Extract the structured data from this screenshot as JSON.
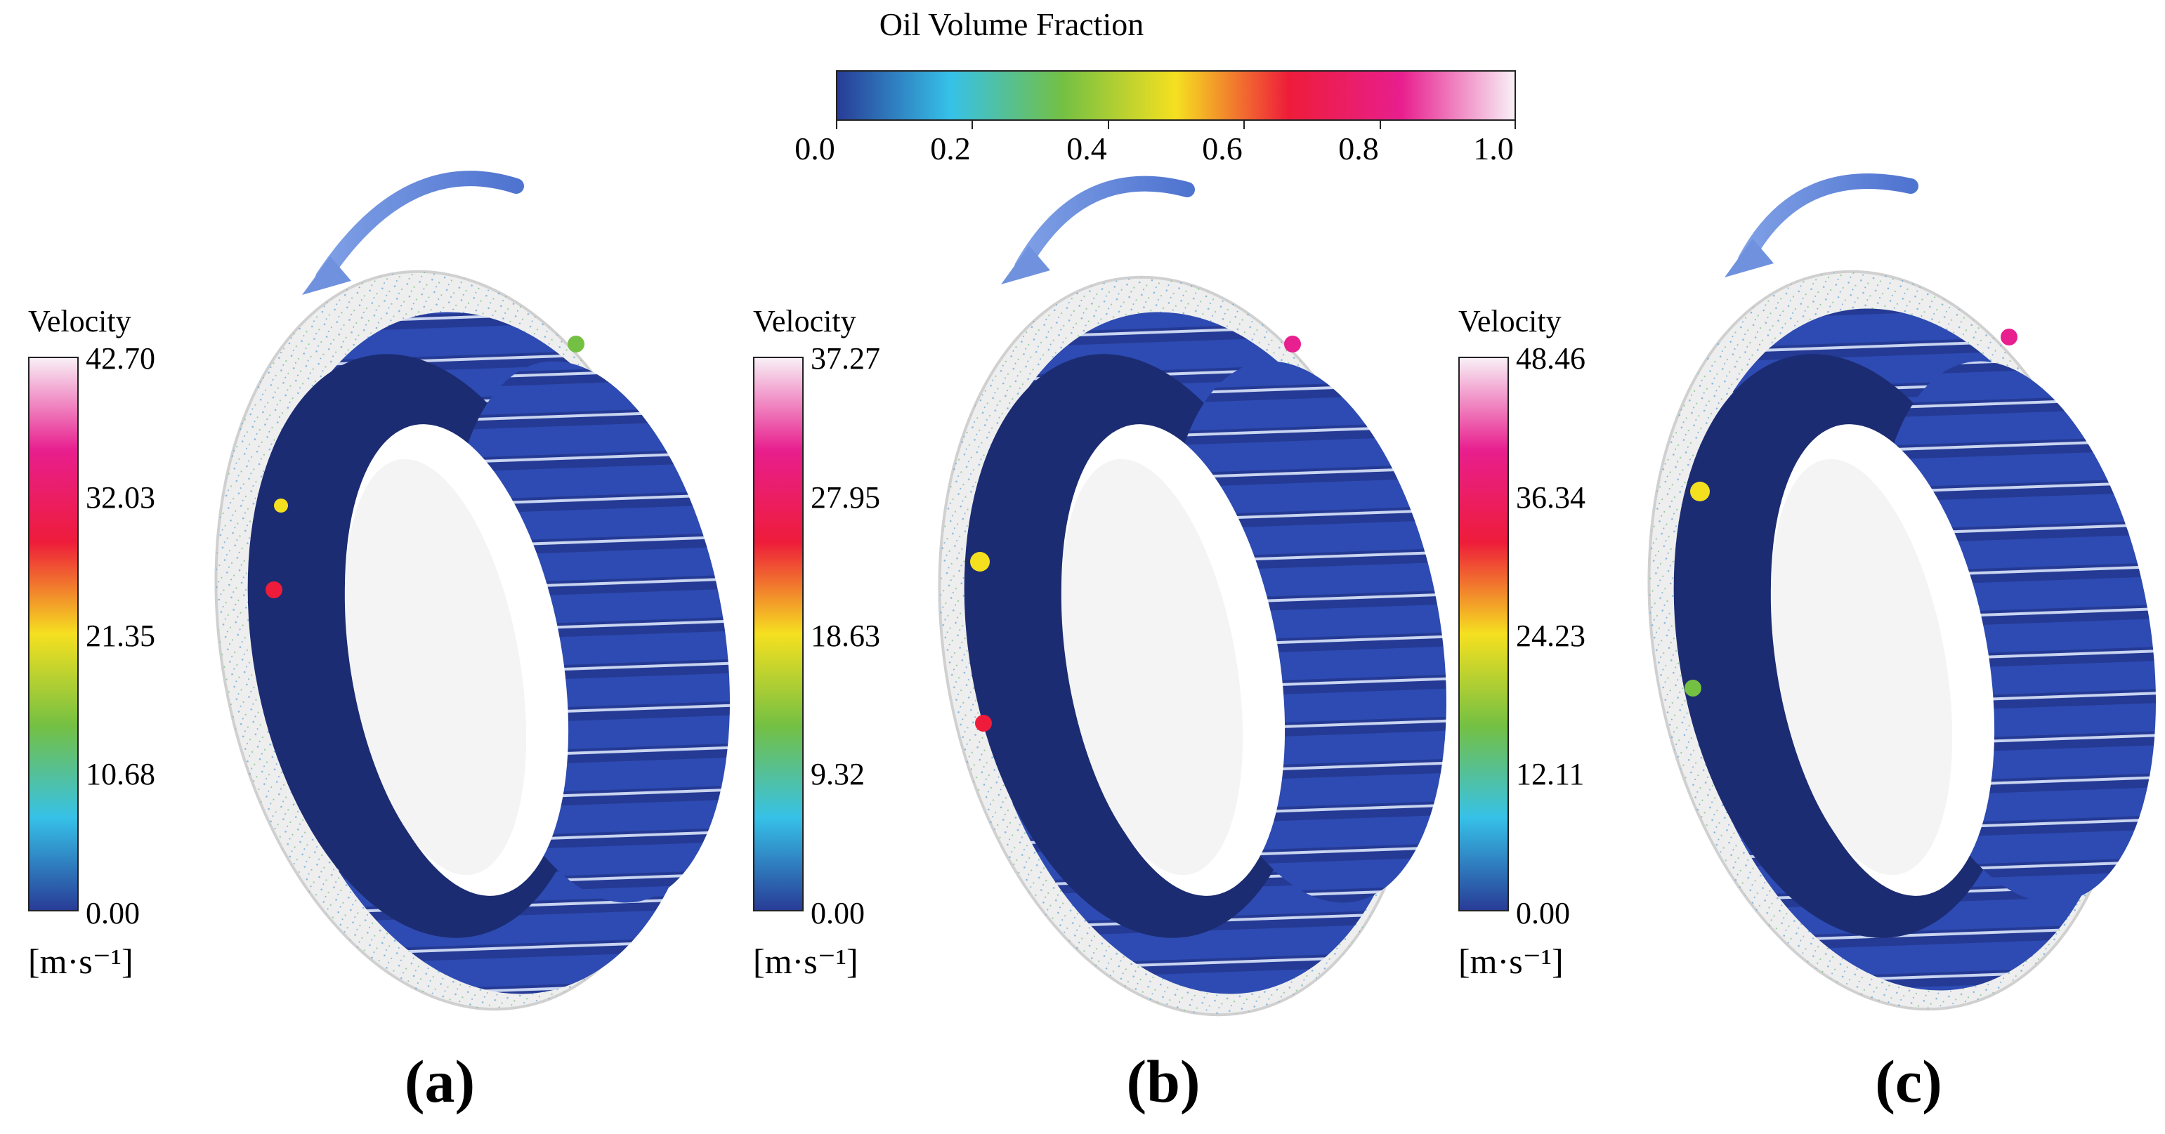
{
  "oil_legend": {
    "title": "Oil Volume Fraction",
    "ticks": [
      "0.0",
      "0.2",
      "0.4",
      "0.6",
      "0.8",
      "1.0"
    ],
    "colors": [
      "#283c96",
      "#36c1e8",
      "#74c043",
      "#f5e020",
      "#ee1c3a",
      "#e81f8e",
      "#f8f0f6"
    ]
  },
  "panels": [
    {
      "label": "(a)",
      "velocity_title": "Velocity",
      "ticks": [
        "42.70",
        "32.03",
        "21.35",
        "10.68",
        "0.00"
      ],
      "unit": "[m·s⁻¹]"
    },
    {
      "label": "(b)",
      "velocity_title": "Velocity",
      "ticks": [
        "37.27",
        "27.95",
        "18.63",
        "9.32",
        "0.00"
      ],
      "unit": "[m·s⁻¹]"
    },
    {
      "label": "(c)",
      "velocity_title": "Velocity",
      "ticks": [
        "48.46",
        "36.34",
        "24.23",
        "12.11",
        "0.00"
      ],
      "unit": "[m·s⁻¹]"
    }
  ],
  "velocity_colors": [
    "#283c96",
    "#36c1e8",
    "#74c043",
    "#f5e020",
    "#ee1c3a",
    "#e81f8e",
    "#f8f0f6"
  ]
}
